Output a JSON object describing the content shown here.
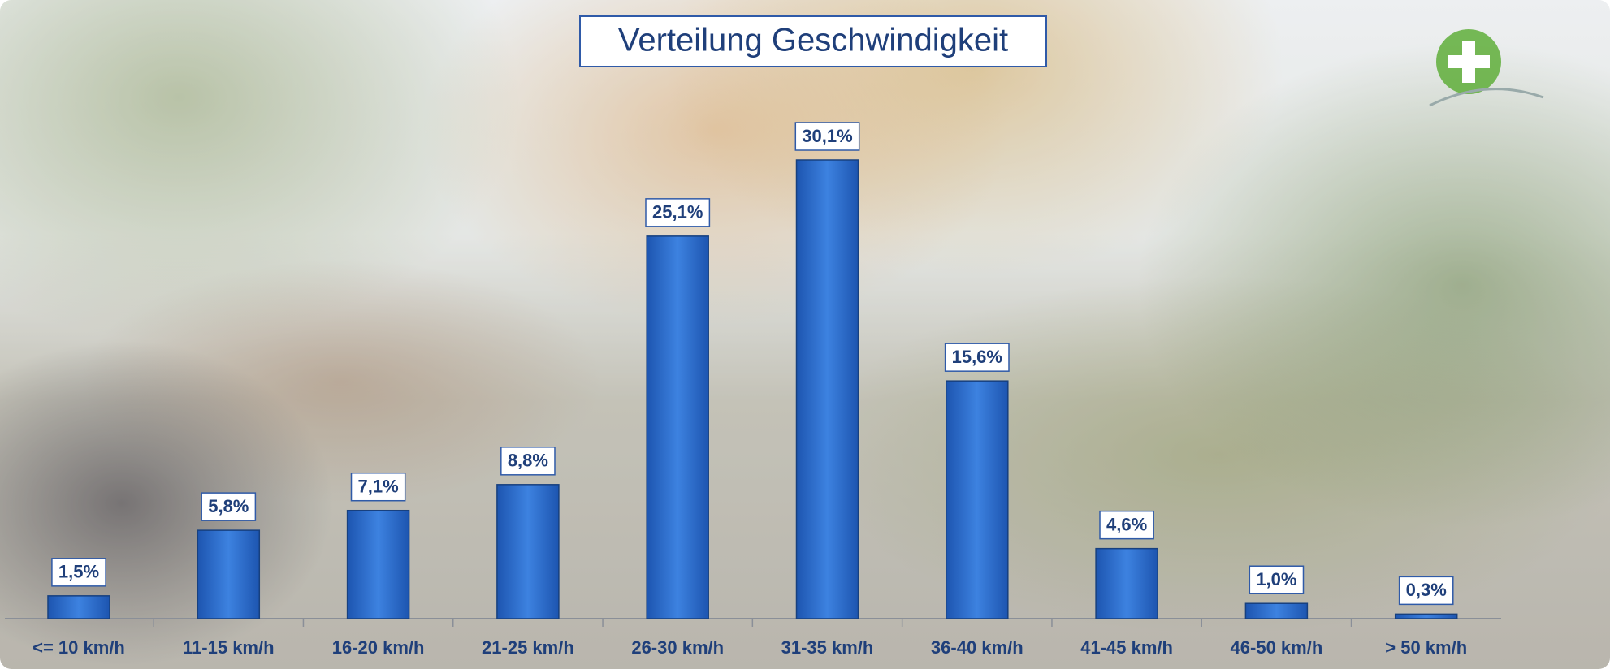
{
  "chart_data": {
    "type": "bar",
    "title": "Verteilung Geschwindigkeit",
    "categories": [
      "<= 10 km/h",
      "11-15 km/h",
      "16-20 km/h",
      "21-25 km/h",
      "26-30 km/h",
      "31-35 km/h",
      "36-40 km/h",
      "41-45 km/h",
      "46-50 km/h",
      "> 50 km/h"
    ],
    "values": [
      1.5,
      5.8,
      7.1,
      8.8,
      25.1,
      30.1,
      15.6,
      4.6,
      1.0,
      0.3
    ],
    "value_labels": [
      "1,5%",
      "5,8%",
      "7,1%",
      "8,8%",
      "25,1%",
      "30,1%",
      "15,6%",
      "4,6%",
      "1,0%",
      "0,3%"
    ],
    "color": "#2f6fd0"
  }
}
